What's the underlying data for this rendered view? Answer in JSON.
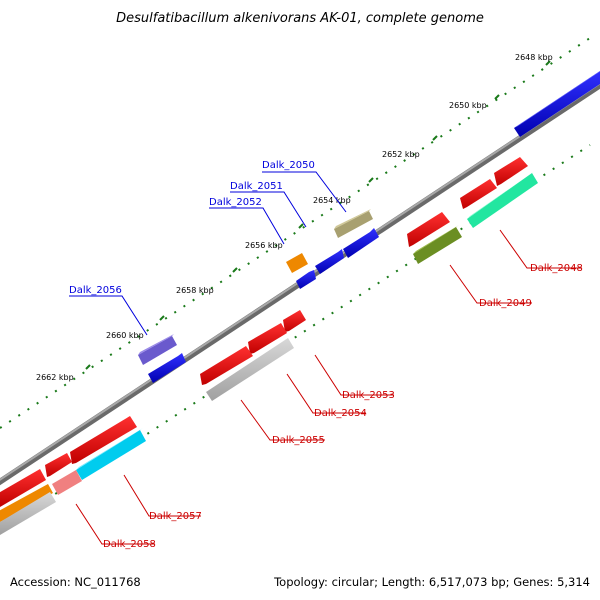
{
  "title": "Desulfatibacillum alkenivorans AK-01, complete genome",
  "footer": {
    "accession": "Accession: NC_011768",
    "summary": "Topology: circular; Length: 6,517,073 bp; Genes: 5,314"
  },
  "ticks": [
    "2648 kbp",
    "2650 kbp",
    "2652 kbp",
    "2654 kbp",
    "2656 kbp",
    "2658 kbp",
    "2660 kbp",
    "2662 kbp"
  ],
  "genes_plus": [
    {
      "name": "Dalk_2050",
      "color": "#0000dd"
    },
    {
      "name": "Dalk_2051",
      "color": "#0000dd"
    },
    {
      "name": "Dalk_2052",
      "color": "#0000dd"
    },
    {
      "name": "Dalk_2056",
      "color": "#0000dd"
    }
  ],
  "genes_minus": [
    {
      "name": "Dalk_2048",
      "color": "#cc0000"
    },
    {
      "name": "Dalk_2049",
      "color": "#cc0000"
    },
    {
      "name": "Dalk_2053",
      "color": "#cc0000"
    },
    {
      "name": "Dalk_2054",
      "color": "#cc0000"
    },
    {
      "name": "Dalk_2055",
      "color": "#cc0000"
    },
    {
      "name": "Dalk_2057",
      "color": "#cc0000"
    },
    {
      "name": "Dalk_2058",
      "color": "#cc0000"
    }
  ],
  "colors": {
    "backbone": "#808080",
    "tick": "#1a7a1a",
    "plus_label": "#0000dd",
    "minus_label": "#cc0000"
  }
}
